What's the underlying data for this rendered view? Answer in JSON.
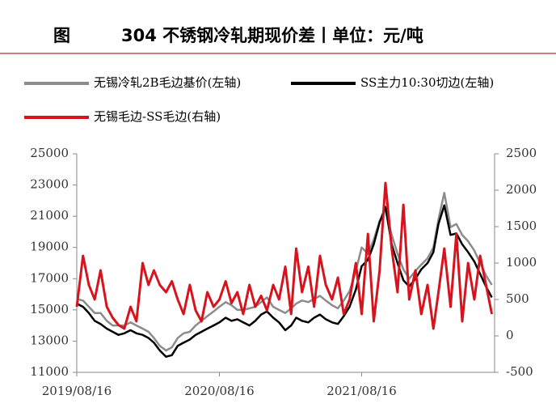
{
  "chart_data": {
    "type": "line",
    "title_prefix": "图",
    "title": "304 不锈钢冷轧期现价差丨单位：元/吨",
    "x": [
      "2019/08/16",
      "2019/09/01",
      "2019/09/16",
      "2019/10/01",
      "2019/10/16",
      "2019/11/01",
      "2019/11/16",
      "2019/12/01",
      "2019/12/16",
      "2020/01/01",
      "2020/01/16",
      "2020/02/01",
      "2020/02/16",
      "2020/03/01",
      "2020/03/16",
      "2020/04/01",
      "2020/04/16",
      "2020/05/01",
      "2020/05/16",
      "2020/06/01",
      "2020/06/16",
      "2020/07/01",
      "2020/07/16",
      "2020/08/01",
      "2020/08/16",
      "2020/09/01",
      "2020/09/16",
      "2020/10/01",
      "2020/10/16",
      "2020/11/01",
      "2020/11/16",
      "2020/12/01",
      "2020/12/16",
      "2021/01/01",
      "2021/01/16",
      "2021/02/01",
      "2021/02/16",
      "2021/03/01",
      "2021/03/16",
      "2021/04/01",
      "2021/04/16",
      "2021/05/01",
      "2021/05/16",
      "2021/06/01",
      "2021/06/16",
      "2021/07/01",
      "2021/07/16",
      "2021/08/01",
      "2021/08/16",
      "2021/09/01",
      "2021/09/16",
      "2021/10/01",
      "2021/10/16",
      "2021/11/01",
      "2021/11/16",
      "2021/12/01",
      "2021/12/16",
      "2022/01/01",
      "2022/01/16",
      "2022/02/01",
      "2022/02/16",
      "2022/03/01",
      "2022/03/16",
      "2022/04/01",
      "2022/04/16",
      "2022/05/01",
      "2022/05/16",
      "2022/06/01",
      "2022/06/16",
      "2022/07/01",
      "2022/07/16"
    ],
    "series": [
      {
        "name": "无锡冷轧2B毛边基价(左轴)",
        "color": "#8c8c8c",
        "axis": "y",
        "values": [
          15700,
          15600,
          15200,
          14800,
          14800,
          14300,
          14000,
          14000,
          14000,
          14200,
          14000,
          13800,
          13600,
          13200,
          12700,
          12400,
          12600,
          13200,
          13500,
          13600,
          14000,
          14300,
          14600,
          14900,
          15200,
          15500,
          15300,
          15000,
          15000,
          15100,
          15200,
          15500,
          15800,
          15200,
          15000,
          14800,
          15100,
          15400,
          15600,
          15500,
          15700,
          15900,
          15600,
          15300,
          15100,
          15600,
          16200,
          17500,
          19000,
          18600,
          19500,
          20700,
          21400,
          19800,
          18600,
          17600,
          17000,
          17500,
          17900,
          18300,
          19000,
          20800,
          22500,
          20300,
          20500,
          19800,
          19400,
          18800,
          18000,
          17200,
          16600
        ]
      },
      {
        "name": "SS主力10:30切边(左轴)",
        "color": "#000000",
        "axis": "y",
        "values": [
          15400,
          15200,
          14800,
          14300,
          14100,
          13800,
          13600,
          13400,
          13500,
          13700,
          13500,
          13400,
          13200,
          12900,
          12400,
          12000,
          12100,
          12700,
          12900,
          13100,
          13400,
          13600,
          13800,
          14000,
          14200,
          14500,
          14300,
          14400,
          14200,
          14000,
          14300,
          14700,
          14900,
          14500,
          14200,
          13700,
          14000,
          14500,
          14300,
          14200,
          14500,
          14700,
          14400,
          14200,
          14100,
          14600,
          15200,
          16300,
          17800,
          18200,
          19200,
          20600,
          21600,
          19200,
          18000,
          16900,
          16500,
          17000,
          17600,
          18000,
          18700,
          20500,
          21700,
          19800,
          19900,
          19200,
          18700,
          18100,
          17300,
          16500,
          15800
        ]
      },
      {
        "name": "无锡毛边-SS毛边(右轴)",
        "color": "#d7141e",
        "axis": "y2",
        "values": [
          400,
          1100,
          700,
          500,
          900,
          400,
          250,
          150,
          100,
          400,
          200,
          1000,
          700,
          900,
          700,
          600,
          750,
          500,
          300,
          700,
          350,
          200,
          600,
          400,
          500,
          750,
          450,
          600,
          300,
          700,
          400,
          550,
          350,
          700,
          500,
          950,
          300,
          1200,
          600,
          950,
          400,
          1100,
          700,
          500,
          800,
          300,
          500,
          1000,
          300,
          1400,
          200,
          900,
          2100,
          1200,
          600,
          1800,
          500,
          900,
          300,
          700,
          100,
          600,
          1200,
          400,
          1400,
          200,
          1000,
          500,
          1100,
          700,
          300
        ]
      }
    ],
    "xlim": [
      "2019/08/16",
      "2022/07/23"
    ],
    "xticks": [
      "2019/08/16",
      "2020/08/16",
      "2021/08/16"
    ],
    "ylim": [
      11000,
      25000
    ],
    "yticks": [
      11000,
      13000,
      15000,
      17000,
      19000,
      21000,
      23000,
      25000
    ],
    "y2lim": [
      -500,
      2500
    ],
    "y2ticks": [
      -500,
      0,
      500,
      1000,
      1500,
      2000,
      2500
    ]
  }
}
